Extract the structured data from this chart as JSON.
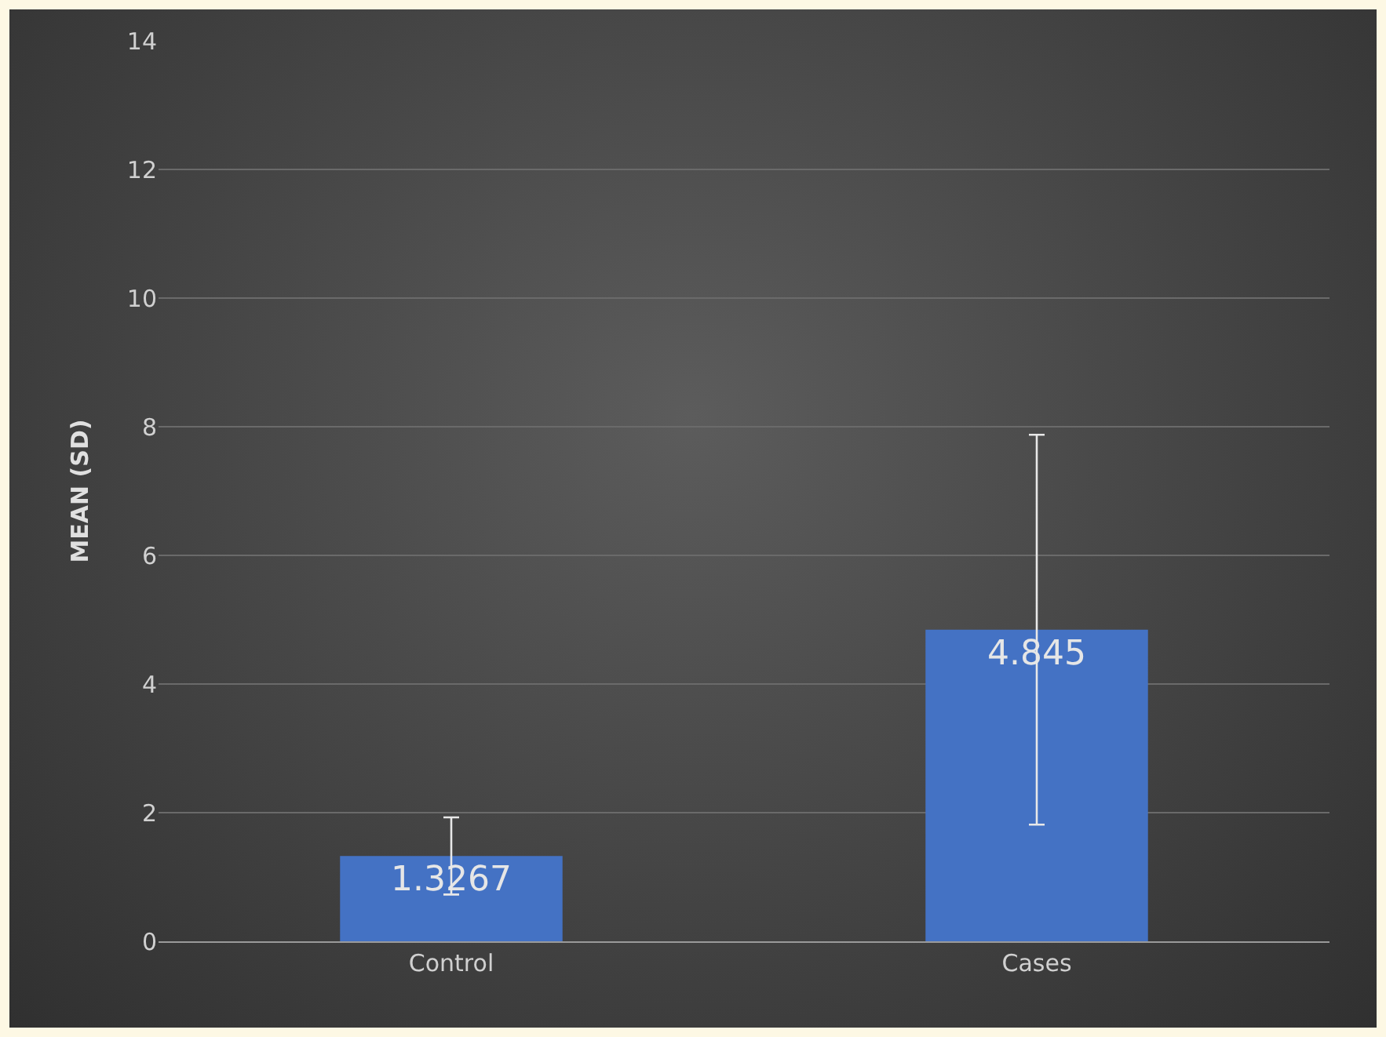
{
  "chart_data": {
    "type": "bar",
    "ylabel": "MEAN (SD)",
    "categories": [
      "Control",
      "Cases"
    ],
    "values": [
      1.3267,
      4.845
    ],
    "errors": [
      0.6,
      3.03
    ],
    "color": "#4472c4",
    "data_labels": true,
    "ylim": [
      0,
      14
    ],
    "yticks": [
      0,
      2,
      4,
      6,
      8,
      10,
      12,
      14
    ],
    "grid": "y"
  }
}
